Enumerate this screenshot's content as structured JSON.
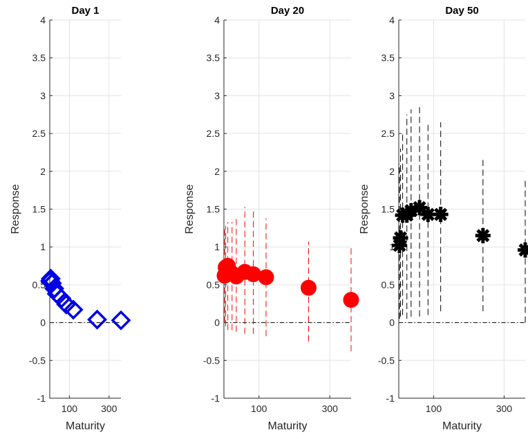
{
  "chart_data": [
    {
      "type": "scatter",
      "title": "Day 1",
      "xlabel": "Maturity",
      "ylabel": "Response",
      "xlim": [
        1,
        360
      ],
      "ylim": [
        -1,
        4
      ],
      "x_ticks": [
        100,
        300
      ],
      "x_tick_labels": [
        "100",
        "300"
      ],
      "y_ticks": [
        -1,
        -0.5,
        0,
        0.5,
        1,
        1.5,
        2,
        2.5,
        3,
        3.5,
        4
      ],
      "y_tick_labels": [
        "-1",
        "-0.5",
        "0",
        "0.5",
        "1",
        "1.5",
        "2",
        "2.5",
        "3",
        "3.5",
        "4"
      ],
      "grid": true,
      "marker": "diamond",
      "color": "#0000e6",
      "zero_line": true,
      "x": [
        3,
        6,
        12,
        24,
        36,
        60,
        84,
        120,
        240,
        360
      ],
      "values": [
        0.55,
        0.58,
        0.52,
        0.45,
        0.38,
        0.32,
        0.24,
        0.17,
        0.04,
        0.03
      ],
      "lower": [
        0.55,
        0.58,
        0.52,
        0.45,
        0.38,
        0.32,
        0.24,
        0.17,
        0.04,
        0.03
      ],
      "upper": [
        0.55,
        0.58,
        0.52,
        0.45,
        0.38,
        0.32,
        0.24,
        0.17,
        0.04,
        0.03
      ]
    },
    {
      "type": "scatter",
      "title": "Day 20",
      "xlabel": "Maturity",
      "ylabel": "Response",
      "xlim": [
        1,
        360
      ],
      "ylim": [
        -1,
        4
      ],
      "x_ticks": [
        100,
        300
      ],
      "x_tick_labels": [
        "100",
        "300"
      ],
      "y_ticks": [
        -1,
        -0.5,
        0,
        0.5,
        1,
        1.5,
        2,
        2.5,
        3,
        3.5,
        4
      ],
      "y_tick_labels": [
        "-1",
        "-0.5",
        "0",
        "0.5",
        "1",
        "1.5",
        "2",
        "2.5",
        "3",
        "3.5",
        "4"
      ],
      "grid": true,
      "marker": "circle",
      "color": "#ff0000",
      "zero_line": true,
      "x": [
        3,
        6,
        12,
        24,
        36,
        60,
        84,
        120,
        240,
        360
      ],
      "values": [
        0.62,
        0.73,
        0.75,
        0.65,
        0.61,
        0.67,
        0.64,
        0.6,
        0.46,
        0.3
      ],
      "lower": [
        0.0,
        -0.05,
        -0.1,
        -0.1,
        -0.12,
        -0.15,
        -0.15,
        -0.18,
        -0.25,
        -0.38
      ],
      "upper": [
        1.25,
        1.28,
        1.33,
        1.33,
        1.38,
        1.53,
        1.5,
        1.38,
        1.07,
        1.02
      ]
    },
    {
      "type": "scatter",
      "title": "Day 50",
      "xlabel": "Maturity",
      "ylabel": "Response",
      "xlim": [
        1,
        360
      ],
      "ylim": [
        -1,
        4
      ],
      "x_ticks": [
        100,
        300
      ],
      "x_tick_labels": [
        "100",
        "300"
      ],
      "y_ticks": [
        -1,
        -0.5,
        0,
        0.5,
        1,
        1.5,
        2,
        2.5,
        3,
        3.5,
        4
      ],
      "y_tick_labels": [
        "-1",
        "-0.5",
        "0",
        "0.5",
        "1",
        "1.5",
        "2",
        "2.5",
        "3",
        "3.5",
        "4"
      ],
      "grid": true,
      "marker": "asterisk",
      "color": "#000000",
      "zero_line": true,
      "x": [
        3,
        6,
        12,
        24,
        36,
        60,
        84,
        120,
        240,
        360
      ],
      "values": [
        1.02,
        1.12,
        1.42,
        1.42,
        1.48,
        1.52,
        1.43,
        1.43,
        1.15,
        0.96
      ],
      "lower": [
        0.05,
        0.08,
        0.1,
        0.05,
        0.08,
        0.08,
        0.1,
        0.15,
        0.15,
        0.0
      ],
      "upper": [
        2.1,
        2.3,
        2.5,
        2.75,
        2.82,
        2.85,
        2.65,
        2.65,
        2.15,
        1.92
      ]
    }
  ]
}
